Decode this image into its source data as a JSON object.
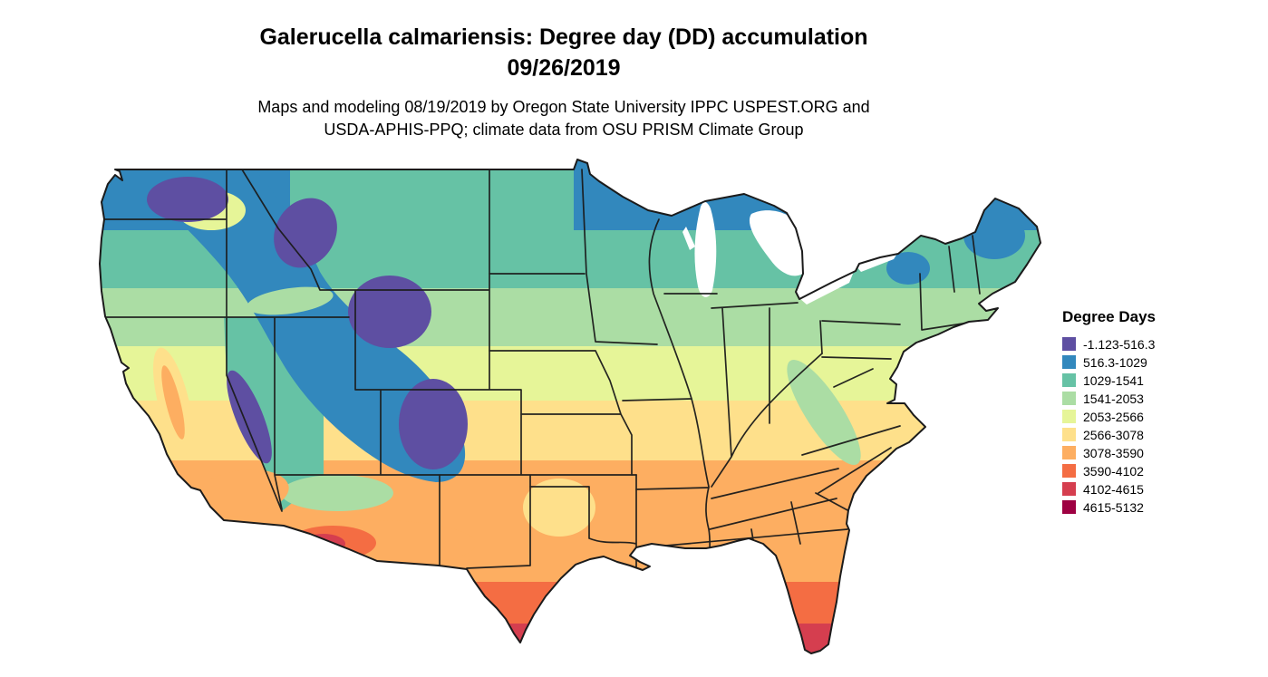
{
  "title": {
    "line1": "Galerucella calmariensis: Degree day (DD) accumulation",
    "line2": "09/26/2019"
  },
  "subtitle": {
    "line1": "Maps and modeling 08/19/2019 by Oregon State University IPPC USPEST.ORG and",
    "line2": "USDA-APHIS-PPQ; climate data from OSU PRISM Climate Group"
  },
  "legend": {
    "title": "Degree Days",
    "entries": [
      {
        "label": "-1.123-516.3",
        "color": "#5e4fa2"
      },
      {
        "label": "516.3-1029",
        "color": "#3288bd"
      },
      {
        "label": "1029-1541",
        "color": "#66c2a5"
      },
      {
        "label": "1541-2053",
        "color": "#abdda4"
      },
      {
        "label": "2053-2566",
        "color": "#e6f598"
      },
      {
        "label": "2566-3078",
        "color": "#fee08b"
      },
      {
        "label": "3078-3590",
        "color": "#fdae61"
      },
      {
        "label": "3590-4102",
        "color": "#f46d43"
      },
      {
        "label": "4102-4615",
        "color": "#d53e4f"
      },
      {
        "label": "4615-5132",
        "color": "#9e0142"
      }
    ]
  },
  "map": {
    "region": "Continental United States",
    "kind": "Degree day accumulation choropleth raster with state boundaries",
    "border_color": "#1b1b1b",
    "water_color": "#ffffff"
  }
}
